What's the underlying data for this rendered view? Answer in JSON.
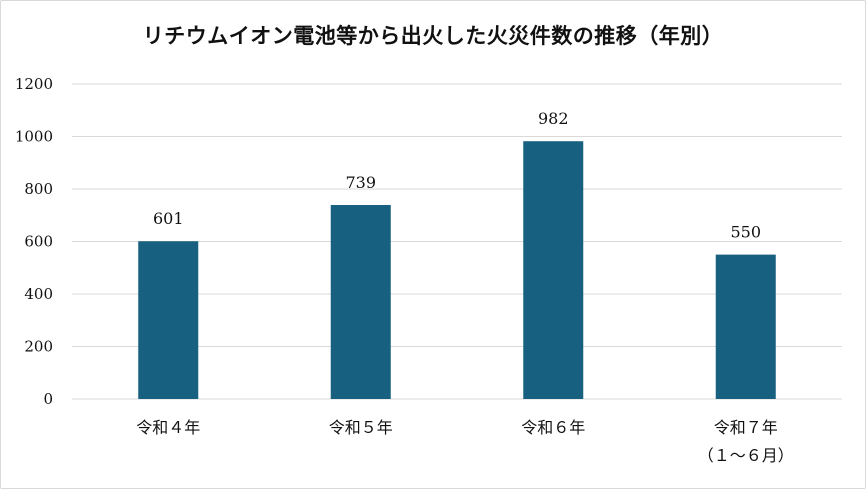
{
  "chart_data": {
    "type": "bar",
    "title": "リチウムイオン電池等から出火した火災件数の推移（年別）",
    "xlabel": "",
    "ylabel": "",
    "categories": [
      [
        "令和４年"
      ],
      [
        "令和５年"
      ],
      [
        "令和６年"
      ],
      [
        "令和７年",
        "（１～６月）"
      ]
    ],
    "values": [
      601,
      739,
      982,
      550
    ],
    "data_labels": [
      "601",
      "739",
      "982",
      "550"
    ],
    "ylim": [
      0,
      1200
    ],
    "yticks": [
      0,
      200,
      400,
      600,
      800,
      1000,
      1200
    ],
    "grid": true,
    "legend": "none",
    "bar_color": "#17607f",
    "grid_color": "#d9d9d9"
  }
}
